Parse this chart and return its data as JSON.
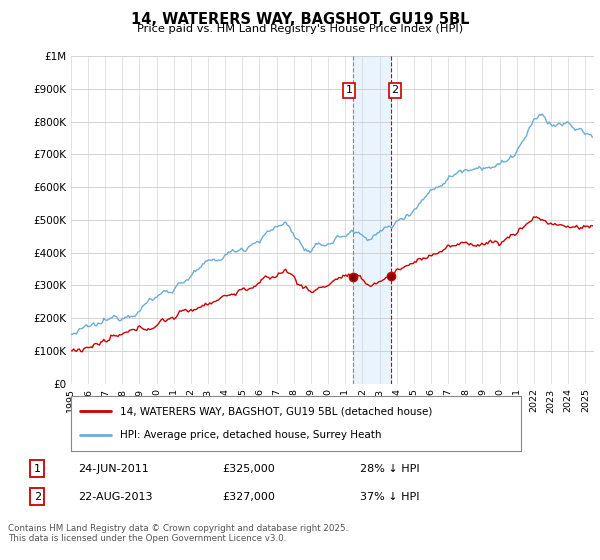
{
  "title": "14, WATERERS WAY, BAGSHOT, GU19 5BL",
  "subtitle": "Price paid vs. HM Land Registry's House Price Index (HPI)",
  "legend_line1": "14, WATERERS WAY, BAGSHOT, GU19 5BL (detached house)",
  "legend_line2": "HPI: Average price, detached house, Surrey Heath",
  "transaction1_date": "24-JUN-2011",
  "transaction1_price": "£325,000",
  "transaction1_hpi": "28% ↓ HPI",
  "transaction2_date": "22-AUG-2013",
  "transaction2_price": "£327,000",
  "transaction2_hpi": "37% ↓ HPI",
  "footer": "Contains HM Land Registry data © Crown copyright and database right 2025.\nThis data is licensed under the Open Government Licence v3.0.",
  "ylim": [
    0,
    1000000
  ],
  "yticks": [
    0,
    100000,
    200000,
    300000,
    400000,
    500000,
    600000,
    700000,
    800000,
    900000,
    1000000
  ],
  "ytick_labels": [
    "£0",
    "£100K",
    "£200K",
    "£300K",
    "£400K",
    "£500K",
    "£600K",
    "£700K",
    "£800K",
    "£900K",
    "£1M"
  ],
  "xlim_start": 1995.0,
  "xlim_end": 2025.5,
  "hpi_color": "#6baed6",
  "price_color": "#cc0000",
  "shade_color": "#ddeeff",
  "vline1_color": "#888888",
  "vline2_color": "#cc0000",
  "transaction1_x": 2011.48,
  "transaction2_x": 2013.64,
  "transaction1_y": 325000,
  "transaction2_y": 327000,
  "background_color": "#ffffff",
  "grid_color": "#cccccc",
  "fig_width": 6.0,
  "fig_height": 5.6,
  "dpi": 100
}
